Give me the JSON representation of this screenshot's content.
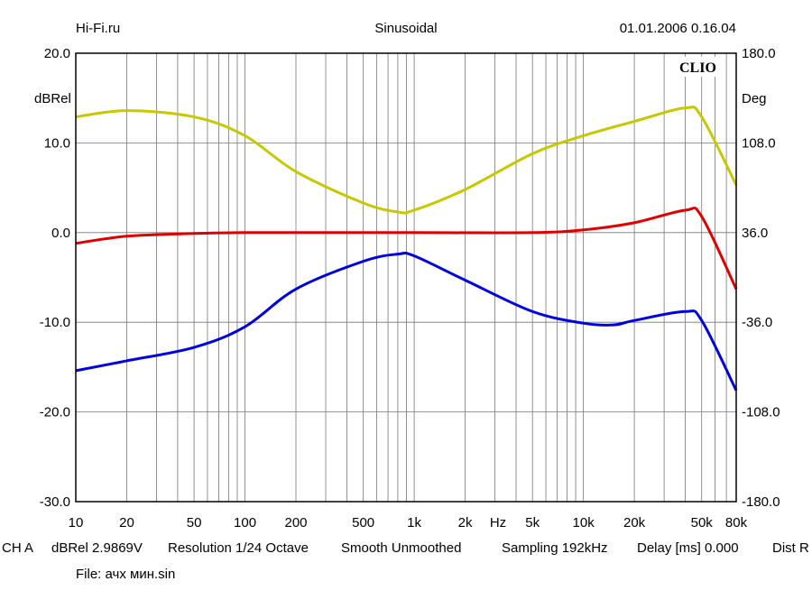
{
  "header": {
    "left": "Hi-Fi.ru",
    "center": "Sinusoidal",
    "right": "01.01.2006 0.16.04"
  },
  "logo": "CLIO",
  "footer": {
    "settings": [
      "CH A",
      "dBRel 2.9869V",
      "Resolution 1/24 Octave",
      "Smooth Unmoothed",
      "Sampling 192kHz",
      "Delay [ms] 0.000",
      "Dist R"
    ],
    "file": "File: ачх мин.sin"
  },
  "chart_data": {
    "type": "line",
    "title": "Sinusoidal",
    "xlabel": "Hz",
    "ylabel_left": "dBRel",
    "ylabel_right": "Deg",
    "xscale": "log",
    "xlim": [
      10,
      80000
    ],
    "ylim_left": [
      -30,
      20
    ],
    "ylim_right": [
      -180,
      180
    ],
    "x_ticks": [
      10,
      20,
      50,
      100,
      200,
      500,
      1000,
      2000,
      5000,
      10000,
      20000,
      50000,
      80000
    ],
    "x_tick_labels": [
      "10",
      "20",
      "50",
      "100",
      "200",
      "500",
      "1k",
      "2k",
      "5k",
      "10k",
      "20k",
      "50k",
      "80k"
    ],
    "y_ticks_left": [
      "20.0",
      "10.0",
      "0.0",
      "-10.0",
      "-20.0",
      "-30.0"
    ],
    "y_ticks_right": [
      "180.0",
      "108.0",
      "36.0",
      "-36.0",
      "-108.0",
      "-180.0"
    ],
    "grid": true,
    "series": [
      {
        "name": "yellow",
        "color": "#c8c800",
        "axis": "left",
        "x": [
          10,
          20,
          50,
          100,
          200,
          500,
          800,
          1000,
          2000,
          5000,
          10000,
          20000,
          40000,
          50000,
          80000
        ],
        "y": [
          12.9,
          13.6,
          12.9,
          10.8,
          6.8,
          3.3,
          2.3,
          2.5,
          4.8,
          8.8,
          10.8,
          12.4,
          13.9,
          12.9,
          5.3
        ]
      },
      {
        "name": "red",
        "color": "#e00000",
        "axis": "left",
        "x": [
          10,
          20,
          50,
          100,
          500,
          1000,
          5000,
          10000,
          20000,
          40000,
          50000,
          80000
        ],
        "y": [
          -1.2,
          -0.4,
          -0.1,
          0,
          0,
          0,
          0,
          0.3,
          1.1,
          2.5,
          1.8,
          -6.3
        ]
      },
      {
        "name": "blue",
        "color": "#0000e0",
        "axis": "left",
        "x": [
          10,
          20,
          50,
          100,
          200,
          500,
          800,
          1000,
          2000,
          5000,
          10000,
          15000,
          20000,
          40000,
          50000,
          80000
        ],
        "y": [
          -15.4,
          -14.3,
          -12.8,
          -10.5,
          -6.3,
          -3.2,
          -2.4,
          -2.6,
          -5.3,
          -8.8,
          -10.1,
          -10.3,
          -9.8,
          -8.8,
          -9.8,
          -17.6
        ]
      }
    ]
  }
}
